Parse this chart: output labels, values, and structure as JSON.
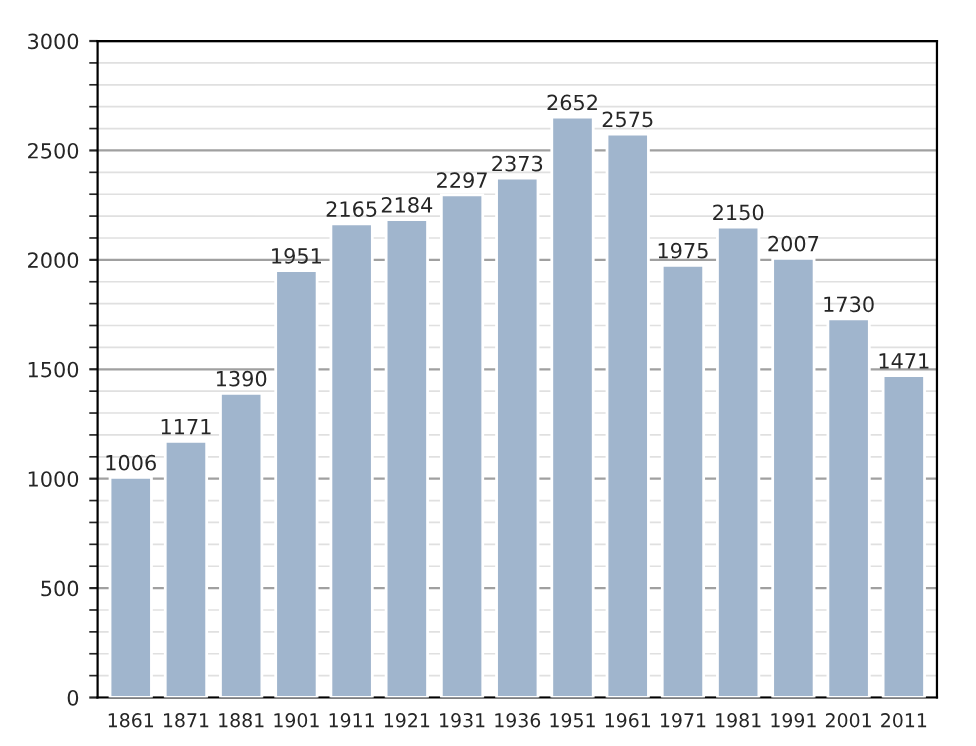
{
  "chart_data": {
    "type": "bar",
    "categories": [
      "1861",
      "1871",
      "1881",
      "1901",
      "1911",
      "1921",
      "1931",
      "1936",
      "1951",
      "1961",
      "1971",
      "1981",
      "1991",
      "2001",
      "2011"
    ],
    "values": [
      1006,
      1171,
      1390,
      1951,
      2165,
      2184,
      2297,
      2373,
      2652,
      2575,
      1975,
      2150,
      2007,
      1730,
      1471
    ],
    "color": "#a0b5cd",
    "ylim": [
      0,
      3000
    ],
    "yticks": [
      0,
      500,
      1000,
      1500,
      2000,
      2500,
      3000
    ],
    "grid": "y",
    "data_labels": true
  }
}
